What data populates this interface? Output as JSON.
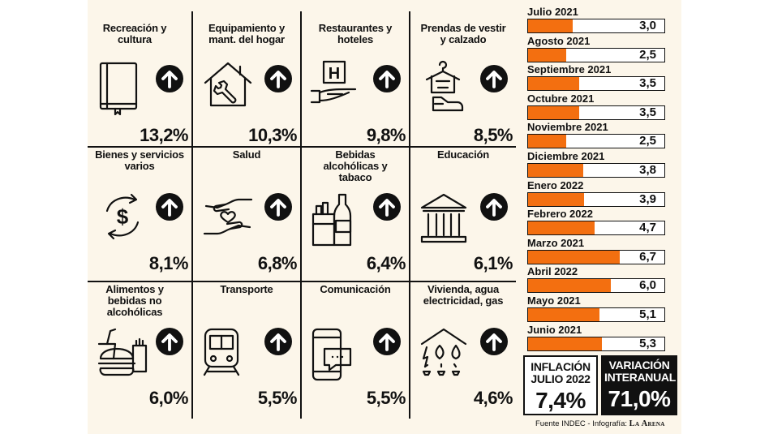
{
  "categories": [
    {
      "label": "Recreación y cultura",
      "value": "13,2%",
      "icon": "book-icon"
    },
    {
      "label": "Equipamiento y mant. del hogar",
      "value": "10,3%",
      "icon": "house-wrench-icon"
    },
    {
      "label": "Restaurantes y hoteles",
      "value": "9,8%",
      "icon": "hotel-icon"
    },
    {
      "label": "Prendas de vestir y calzado",
      "value": "8,5%",
      "icon": "clothing-shoe-icon"
    },
    {
      "label": "Bienes y servicios varios",
      "value": "8,1%",
      "icon": "dollar-exchange-icon"
    },
    {
      "label": "Salud",
      "value": "6,8%",
      "icon": "health-hands-icon"
    },
    {
      "label": "Bebidas alcohólicas y tabaco",
      "value": "6,4%",
      "icon": "bottle-cigarettes-icon"
    },
    {
      "label": "Educación",
      "value": "6,1%",
      "icon": "building-columns-icon"
    },
    {
      "label": "Alimentos y bebidas no alcohólicas",
      "value": "6,0%",
      "icon": "food-icon"
    },
    {
      "label": "Transporte",
      "value": "5,5%",
      "icon": "train-icon"
    },
    {
      "label": "Comunicación",
      "value": "5,5%",
      "icon": "phone-chat-icon"
    },
    {
      "label": "Vivienda, agua electricidad, gas",
      "value": "4,6%",
      "icon": "utilities-house-icon"
    }
  ],
  "chart_data": {
    "type": "bar",
    "orientation": "horizontal",
    "categories": [
      "Julio 2021",
      "Agosto 2021",
      "Septiembre 2021",
      "Octubre 2021",
      "Noviembre 2021",
      "Diciembre 2021",
      "Enero 2022",
      "Febrero 2022",
      "Marzo 2021",
      "Abril 2022",
      "Mayo 2021",
      "Junio 2021"
    ],
    "values": [
      3.0,
      2.5,
      3.5,
      3.5,
      2.5,
      3.8,
      3.9,
      4.7,
      6.7,
      6.0,
      5.1,
      5.3
    ],
    "value_labels": [
      "3,0",
      "2,5",
      "3,5",
      "3,5",
      "2,5",
      "3,8",
      "3,9",
      "4,7",
      "6,7",
      "6,0",
      "5,1",
      "5,3"
    ],
    "xlim": [
      0,
      7.0
    ],
    "bar_color": "#f36f10"
  },
  "summary": {
    "inflation_title": "INFLACIÓN JULIO 2022",
    "inflation_value": "7,4%",
    "yoy_title": "VARIACIÓN INTERANUAL",
    "yoy_value": "71,0%"
  },
  "credit": {
    "text": "Fuente INDEC - Infografía: ",
    "brand": "La Arena"
  },
  "colors": {
    "accent": "#f36f10",
    "ink": "#111111",
    "panel": "#fcf6ea"
  }
}
